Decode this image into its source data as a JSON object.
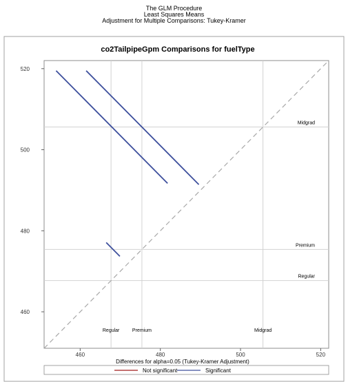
{
  "header": {
    "line1": "The GLM Procedure",
    "line2": "Least Squares Means",
    "line3": "Adjustment for Multiple Comparisons: Tukey-Kramer"
  },
  "chart_data": {
    "type": "line",
    "title": "co2TailpipeGpm Comparisons for fuelType",
    "xlabel": "",
    "ylabel": "",
    "xlim": [
      451,
      522
    ],
    "ylim": [
      451,
      522
    ],
    "xticks": [
      460,
      480,
      500,
      520
    ],
    "yticks": [
      460,
      480,
      500,
      520
    ],
    "grid": false,
    "reference_lines": [
      {
        "label": "Regular",
        "value": 467.7
      },
      {
        "label": "Premium",
        "value": 475.4
      },
      {
        "label": "Midgrad",
        "value": 505.6
      }
    ],
    "comparisons": [
      {
        "x": [
          454.0,
          481.8
        ],
        "y": [
          519.5,
          491.7
        ],
        "significant": true
      },
      {
        "x": [
          461.5,
          489.6
        ],
        "y": [
          519.5,
          491.4
        ],
        "significant": true
      },
      {
        "x": [
          466.5,
          469.9
        ],
        "y": [
          477.1,
          473.7
        ],
        "significant": true
      }
    ],
    "diagonal": true,
    "footnote": "Differences for alpha=0.05 (Tukey-Kramer Adjustment)",
    "legend": {
      "placement": "bottom",
      "items": [
        {
          "label": "Not significant",
          "color": "#a11a1a"
        },
        {
          "label": "Significant",
          "color": "#3d4f9c"
        }
      ]
    }
  }
}
